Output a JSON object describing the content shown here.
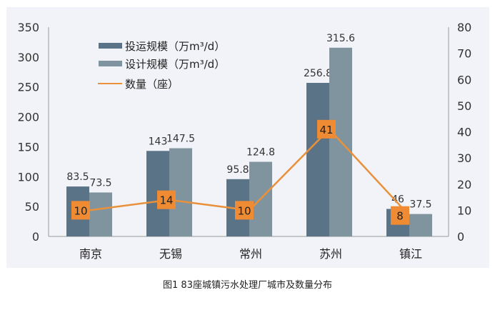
{
  "chart_data": {
    "type": "bar",
    "title": "",
    "categories": [
      "南京",
      "无锡",
      "常州",
      "苏州",
      "镇江"
    ],
    "series": [
      {
        "name": "投运规模（万m³/d）",
        "kind": "bar",
        "axis": "left",
        "color": "#5b7387",
        "values": [
          83.5,
          143,
          95.8,
          256.8,
          46
        ]
      },
      {
        "name": "设计规模（万m³/d）",
        "kind": "bar",
        "axis": "left",
        "color": "#7f949e",
        "values": [
          73.5,
          147.5,
          124.8,
          315.6,
          37.5
        ]
      },
      {
        "name": "数量（座）",
        "kind": "line",
        "axis": "right",
        "color": "#e8913a",
        "values": [
          10,
          14,
          10,
          41,
          8
        ]
      }
    ],
    "ylim": [
      0,
      350
    ],
    "yticks": [
      0,
      50,
      100,
      150,
      200,
      250,
      300,
      350
    ],
    "y2lim": [
      0,
      80
    ],
    "y2ticks": [
      0,
      10,
      20,
      30,
      40,
      50,
      60,
      70,
      80
    ],
    "legend": "top-left",
    "grid": false
  },
  "caption": "图1 83座城镇污水处理厂城市及数量分布"
}
